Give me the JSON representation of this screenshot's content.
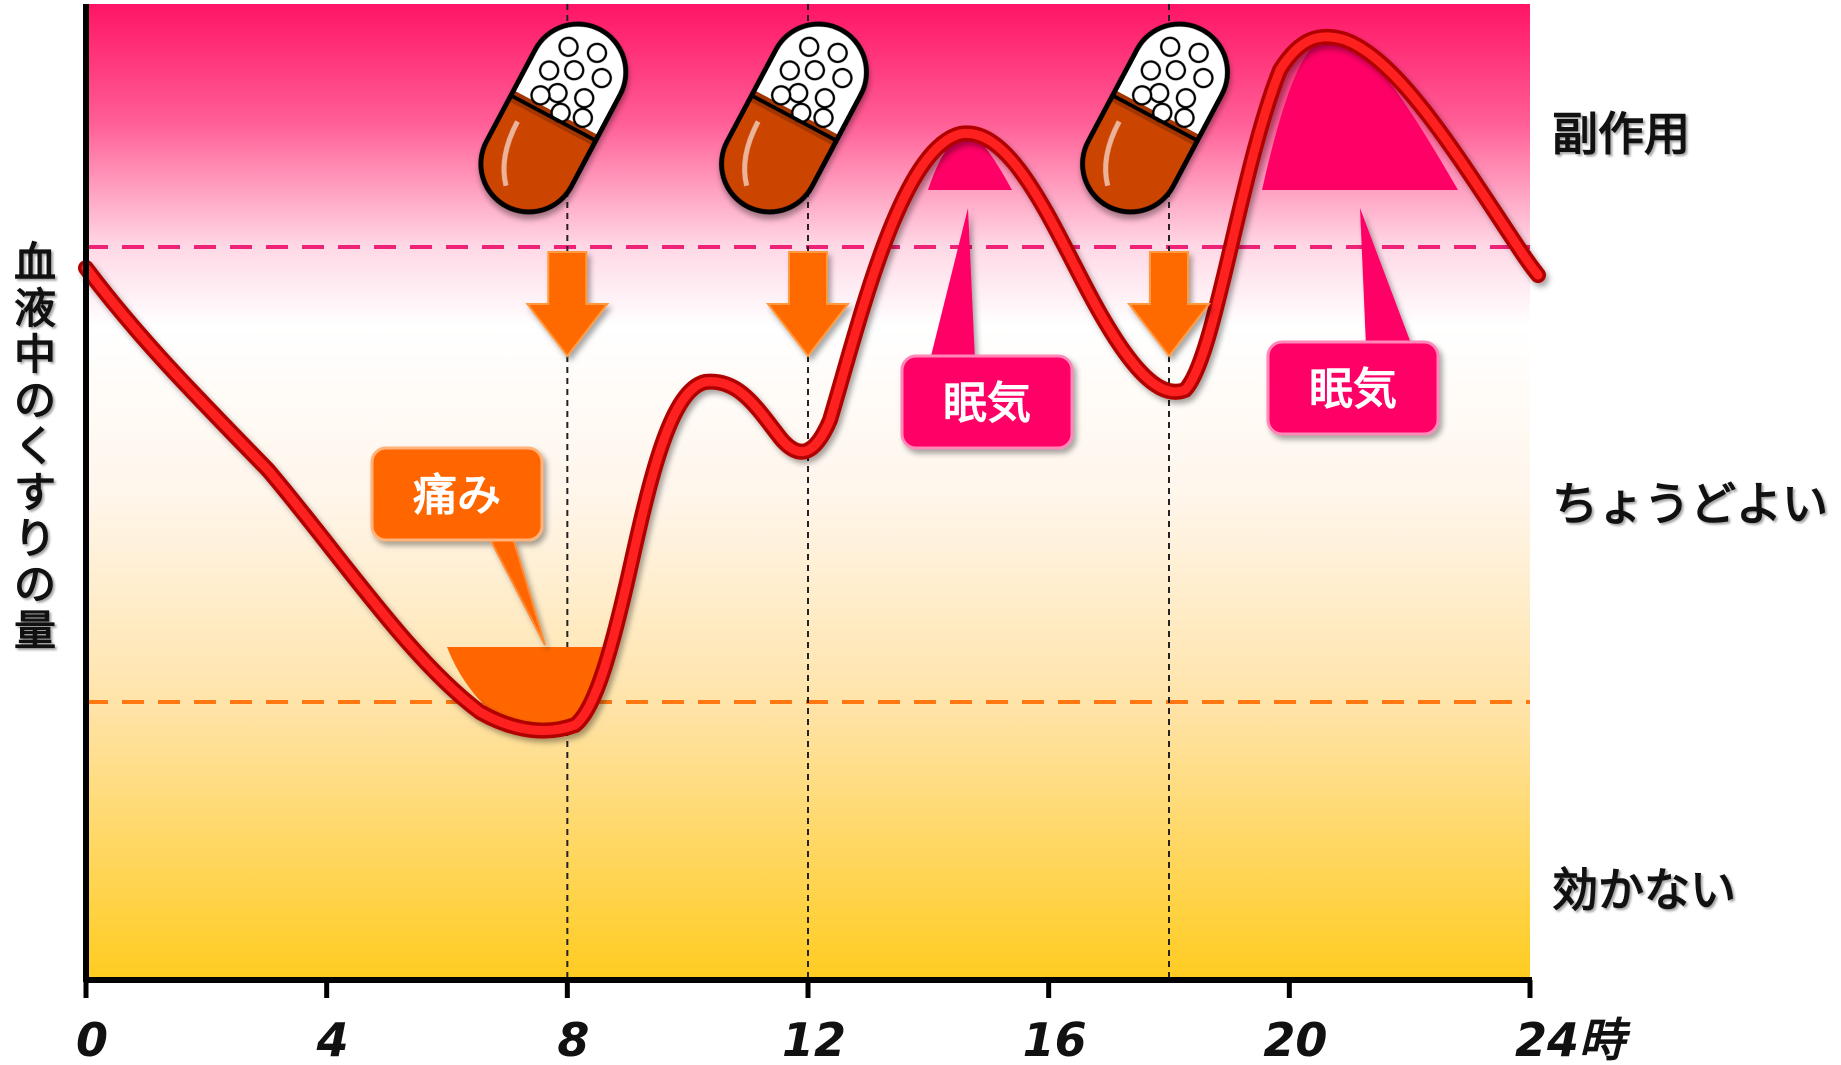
{
  "y_axis_label": "血液中のくすりの量",
  "x_ticks": [
    "0",
    "4",
    "8",
    "12",
    "16",
    "20",
    "24時"
  ],
  "zones": {
    "top": "副作用",
    "middle": "ちょうどよい",
    "bottom": "効かない"
  },
  "callouts": {
    "pain": "痛み",
    "drowsy_1": "眠気",
    "drowsy_2": "眠気"
  },
  "dose_times": [
    8,
    12,
    18
  ],
  "colors": {
    "curve": "#ff0000",
    "side_effect_line": "#ee2277",
    "ineffective_line": "#ff7711",
    "pain_fill": "#ff6600",
    "drowsy_fill": "#ff0066",
    "capsule_body": "#cc4400",
    "arrow": "#ff6a00"
  },
  "icons": {
    "capsule": "capsule-icon",
    "arrow": "down-arrow-icon"
  }
}
